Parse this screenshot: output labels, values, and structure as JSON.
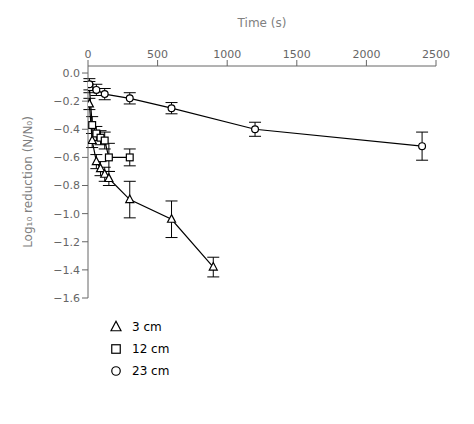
{
  "chart_data": {
    "type": "line",
    "xlabel": "Time (s)",
    "ylabel": "Log₁₀ reduction (N/N₀)",
    "xlim": [
      0,
      2500
    ],
    "xticks": [
      0,
      500,
      1000,
      1500,
      2000,
      2500
    ],
    "ylim": [
      -1.6,
      0.05
    ],
    "yticks": [
      {
        "value": 0,
        "label": "0.0"
      },
      {
        "value": -0.2,
        "label": "−0.2"
      },
      {
        "value": -0.4,
        "label": "−0.4"
      },
      {
        "value": -0.6,
        "label": "−0.6"
      },
      {
        "value": -0.8,
        "label": "−0.8"
      },
      {
        "value": -1.0,
        "label": "−1.0"
      },
      {
        "value": -1.2,
        "label": "−1.2"
      },
      {
        "value": -1.4,
        "label": "−1.4"
      },
      {
        "value": -1.6,
        "label": "−1.6"
      }
    ],
    "legend": "bottom",
    "grid": false,
    "series": [
      {
        "name": "3 cm",
        "marker": "triangle",
        "color": "#000000",
        "x": [
          10,
          30,
          60,
          90,
          120,
          150,
          300,
          600,
          900
        ],
        "values": [
          -0.22,
          -0.48,
          -0.63,
          -0.68,
          -0.72,
          -0.75,
          -0.9,
          -1.04,
          -1.38
        ],
        "yerr": [
          0.04,
          0.05,
          0.05,
          0.05,
          0.05,
          0.05,
          0.13,
          0.13,
          0.07
        ]
      },
      {
        "name": "12 cm",
        "marker": "square",
        "color": "#000000",
        "x": [
          10,
          30,
          60,
          90,
          120,
          150,
          300
        ],
        "values": [
          -0.1,
          -0.37,
          -0.43,
          -0.46,
          -0.48,
          -0.6,
          -0.6
        ],
        "yerr": [
          0.04,
          0.06,
          0.05,
          0.05,
          0.06,
          0.1,
          0.06
        ]
      },
      {
        "name": "23 cm",
        "marker": "circle",
        "color": "#000000",
        "x": [
          10,
          60,
          120,
          300,
          600,
          1200,
          2400
        ],
        "values": [
          -0.08,
          -0.12,
          -0.15,
          -0.18,
          -0.25,
          -0.4,
          -0.52
        ],
        "yerr": [
          0.04,
          0.04,
          0.04,
          0.04,
          0.04,
          0.05,
          0.1
        ]
      }
    ]
  }
}
